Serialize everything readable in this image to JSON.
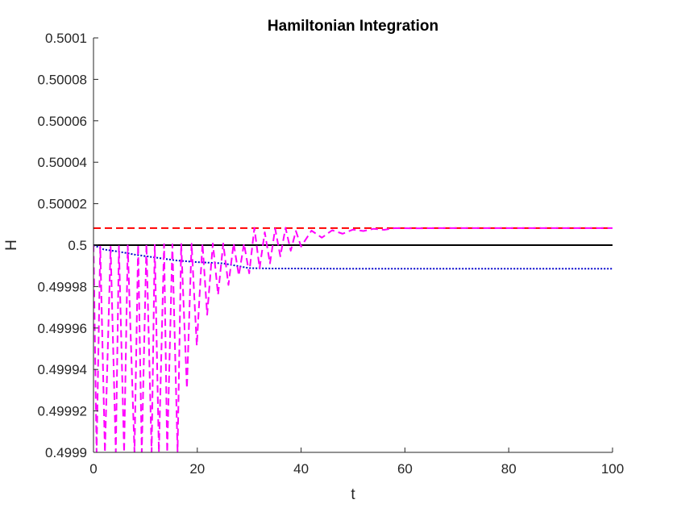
{
  "chart_data": {
    "type": "line",
    "title": "Hamiltonian Integration",
    "xlabel": "t",
    "ylabel": "H",
    "xlim": [
      0,
      100
    ],
    "ylim": [
      0.4999,
      0.5001
    ],
    "x_ticks": [
      0,
      20,
      40,
      60,
      80,
      100
    ],
    "x_tick_labels": [
      "0",
      "20",
      "40",
      "60",
      "80",
      "100"
    ],
    "y_ticks": [
      0.4999,
      0.49992,
      0.49994,
      0.49996,
      0.49998,
      0.5,
      0.50002,
      0.50004,
      0.50006,
      0.50008,
      0.5001
    ],
    "y_tick_labels": [
      "0.4999",
      "0.49992",
      "0.49994",
      "0.49996",
      "0.49998",
      "0.5",
      "0.50002",
      "0.50004",
      "0.50006",
      "0.50008",
      "0.5001"
    ],
    "grid": false,
    "legend": "none",
    "series": [
      {
        "color": "#000000",
        "style": "solid",
        "x": [
          0,
          100
        ],
        "y": [
          0.5,
          0.5
        ]
      },
      {
        "color": "#ff0000",
        "style": "dashed",
        "x": [
          0,
          100
        ],
        "y": [
          0.5000082,
          0.5000082
        ]
      },
      {
        "color": "#0000cc",
        "style": "dotted",
        "x": [
          0,
          2,
          5,
          8,
          12,
          16,
          20,
          25,
          30,
          35,
          40,
          50,
          60,
          80,
          100
        ],
        "y": [
          0.5,
          0.4999979,
          0.4999968,
          0.4999954,
          0.499994,
          0.4999926,
          0.4999918,
          0.4999912,
          0.4999889,
          0.4999887,
          0.4999887,
          0.4999886,
          0.4999886,
          0.4999886,
          0.4999886
        ]
      },
      {
        "color": "#ff00ff",
        "style": "dashed",
        "x": [
          0,
          0.6,
          1.3,
          2.2,
          3.3,
          4.3,
          4.9,
          5.9,
          6.6,
          7.9,
          8.6,
          9.3,
          10.2,
          11.2,
          11.8,
          12.6,
          13.6,
          14.2,
          15.2,
          16.2,
          16.9,
          18.0,
          18.9,
          19.9,
          21.0,
          21.9,
          23.0,
          24.0,
          25.0,
          26.0,
          27.0,
          28.0,
          29.0,
          30.0,
          31.0,
          32.0,
          33.0,
          34.0,
          35.0,
          36.0,
          37.0,
          38.0,
          39.0,
          40.0,
          42.0,
          44.0,
          46.0,
          48.0,
          50.0,
          52.0,
          54.0,
          56.0,
          58.0,
          62.0,
          66.0,
          72.0,
          80.0,
          100.0
        ],
        "y": [
          0.5000002,
          0.4999,
          0.4999993,
          0.4999,
          0.4999992,
          0.4999,
          0.4999995,
          0.4999,
          0.4999998,
          0.4999,
          0.5000002,
          0.4999,
          0.5000005,
          0.4999,
          0.5000001,
          0.4999,
          0.5000005,
          0.4999,
          0.5000004,
          0.4999005,
          0.5000006,
          0.4999309,
          0.5000007,
          0.4999515,
          0.5000008,
          0.4999664,
          0.5000008,
          0.4999761,
          0.5000008,
          0.4999808,
          0.500000869,
          0.4999853,
          0.50000074,
          0.4999864,
          0.5000083,
          0.4999889,
          0.5000062,
          0.4999912,
          0.50000795,
          0.4999946,
          0.50000835,
          0.4999973,
          0.5000068,
          0.4999993,
          0.500007,
          0.5000036,
          0.5000072,
          0.5000055,
          0.5000075,
          0.5000068,
          0.5000079,
          0.5000074,
          0.5000082,
          0.5000081,
          0.5000082,
          0.5000082,
          0.5000082,
          0.5000082
        ]
      }
    ]
  }
}
